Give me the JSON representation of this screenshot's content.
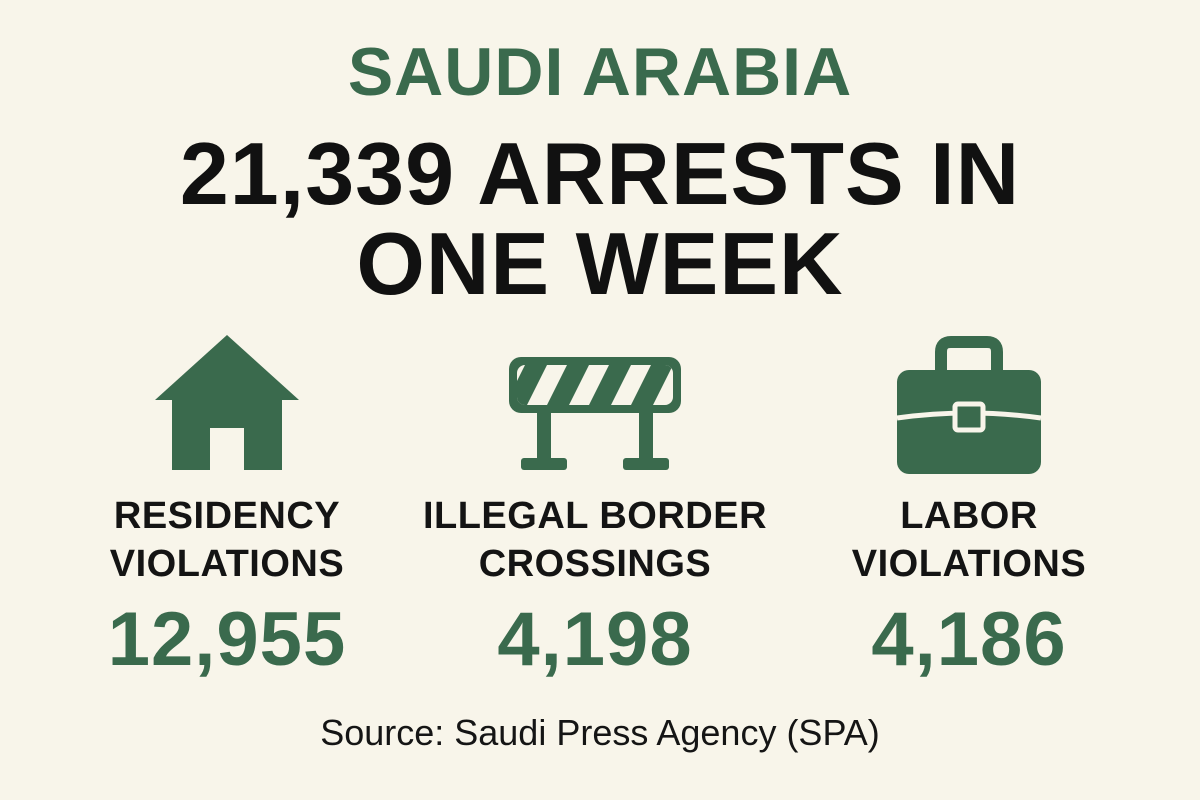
{
  "header": {
    "region": "SAUDI ARABIA",
    "headline_line1": "21,339 ARRESTS IN",
    "headline_line2": "ONE WEEK"
  },
  "stats": [
    {
      "icon": "house-icon",
      "label_line1": "RESIDENCY",
      "label_line2": "VIOLATIONS",
      "value": "12,955"
    },
    {
      "icon": "barrier-icon",
      "label_line1": "ILLEGAL BORDER",
      "label_line2": "CROSSINGS",
      "value": "4,198"
    },
    {
      "icon": "briefcase-icon",
      "label_line1": "LABOR",
      "label_line2": "VIOLATIONS",
      "value": "4,186"
    }
  ],
  "source": "Source: Saudi Press Agency (SPA)",
  "colors": {
    "background": "#f8f5ea",
    "accent_green": "#3a6a4d",
    "text_dark": "#141414"
  }
}
